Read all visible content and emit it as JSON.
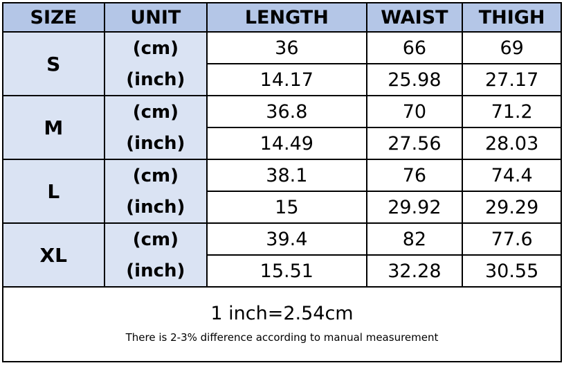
{
  "headers": [
    "SIZE",
    "UNIT",
    "LENGTH",
    "WAIST",
    "THIGH"
  ],
  "rows": [
    {
      "size": "S",
      "cm_label": "(cm)",
      "inch_label": "(inch)",
      "cm": [
        "36",
        "66",
        "69"
      ],
      "inch": [
        "14.17",
        "25.98",
        "27.17"
      ]
    },
    {
      "size": "M",
      "cm_label": "(cm)",
      "inch_label": "(inch)",
      "cm": [
        "36.8",
        "70",
        "71.2"
      ],
      "inch": [
        "14.49",
        "27.56",
        "28.03"
      ]
    },
    {
      "size": "L",
      "cm_label": "(cm)",
      "inch_label": "(inch)",
      "cm": [
        "38.1",
        "76",
        "74.4"
      ],
      "inch": [
        "15",
        "29.92",
        "29.29"
      ]
    },
    {
      "size": "XL",
      "cm_label": "(cm)",
      "inch_label": "(inch)",
      "cm": [
        "39.4",
        "82",
        "77.6"
      ],
      "inch": [
        "15.51",
        "32.28",
        "30.55"
      ]
    }
  ],
  "footer": {
    "conversion": "1 inch=2.54cm",
    "note": "There is 2-3% difference according to manual measurement"
  },
  "colors": {
    "header_bg": "#b4c6e7",
    "label_bg": "#dae3f3"
  }
}
